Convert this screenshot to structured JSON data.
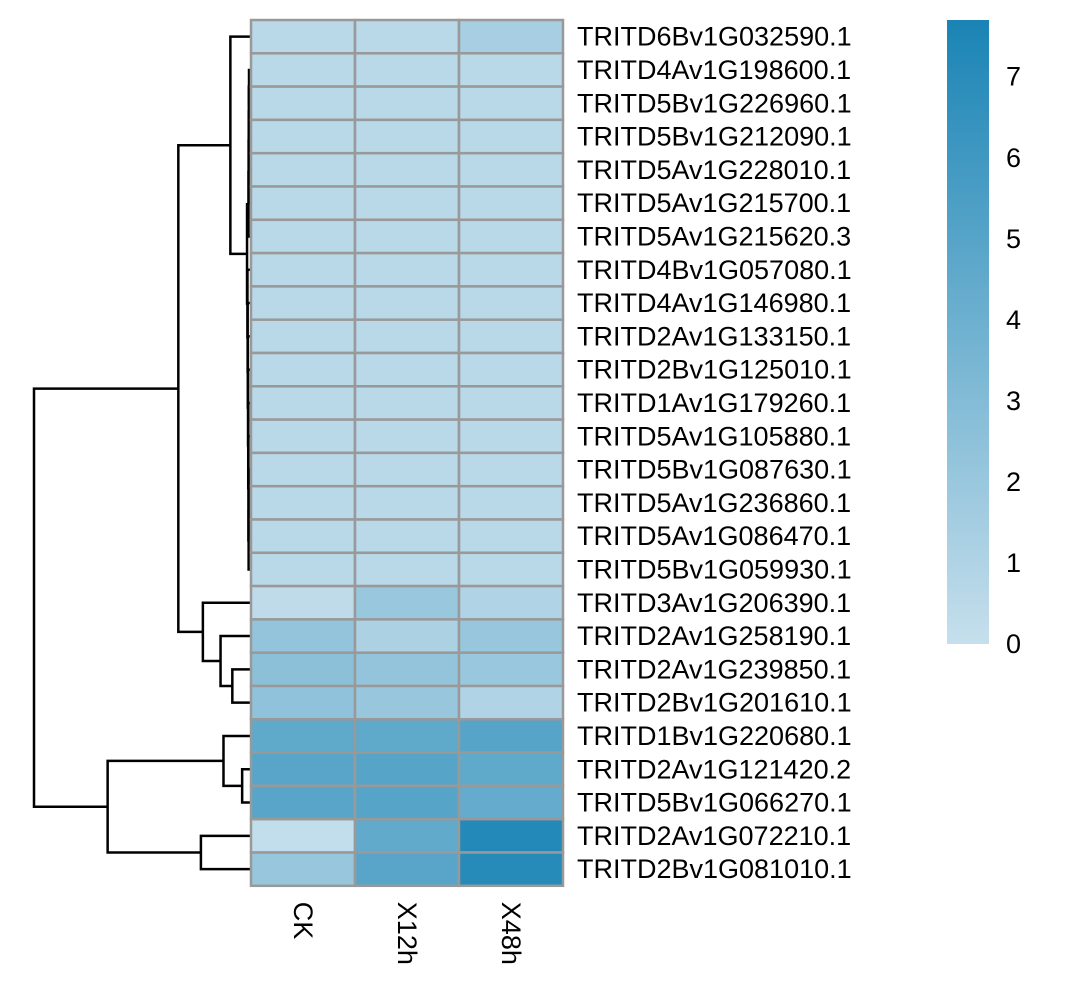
{
  "chart_data": {
    "type": "heatmap",
    "title": "",
    "columns": [
      "CK",
      "X12h",
      "X48h"
    ],
    "rows": [
      "TRITD6Bv1G032590.1",
      "TRITD4Av1G198600.1",
      "TRITD5Bv1G226960.1",
      "TRITD5Bv1G212090.1",
      "TRITD5Av1G228010.1",
      "TRITD5Av1G215700.1",
      "TRITD5Av1G215620.3",
      "TRITD4Bv1G057080.1",
      "TRITD4Av1G146980.1",
      "TRITD2Av1G133150.1",
      "TRITD2Bv1G125010.1",
      "TRITD1Av1G179260.1",
      "TRITD5Av1G105880.1",
      "TRITD5Bv1G087630.1",
      "TRITD5Av1G236860.1",
      "TRITD5Av1G086470.1",
      "TRITD5Bv1G059930.1",
      "TRITD3Av1G206390.1",
      "TRITD2Av1G258190.1",
      "TRITD2Av1G239850.1",
      "TRITD2Bv1G201610.1",
      "TRITD1Bv1G220680.1",
      "TRITD2Av1G121420.2",
      "TRITD5Bv1G066270.1",
      "TRITD2Av1G072210.1",
      "TRITD2Bv1G081010.1"
    ],
    "values": [
      [
        0.6,
        0.6,
        1.4
      ],
      [
        0.6,
        0.6,
        0.6
      ],
      [
        0.6,
        0.6,
        0.6
      ],
      [
        0.6,
        0.6,
        0.6
      ],
      [
        0.6,
        0.6,
        0.6
      ],
      [
        0.6,
        0.6,
        0.6
      ],
      [
        0.6,
        0.6,
        0.6
      ],
      [
        0.6,
        0.6,
        0.6
      ],
      [
        0.6,
        0.6,
        0.6
      ],
      [
        0.6,
        0.6,
        0.6
      ],
      [
        0.6,
        0.6,
        0.6
      ],
      [
        0.6,
        0.6,
        0.6
      ],
      [
        0.6,
        0.6,
        0.6
      ],
      [
        0.6,
        0.6,
        0.6
      ],
      [
        0.6,
        0.6,
        0.6
      ],
      [
        0.6,
        0.6,
        0.6
      ],
      [
        0.6,
        0.6,
        0.6
      ],
      [
        0.3,
        2.0,
        1.0
      ],
      [
        2.3,
        1.2,
        2.1
      ],
      [
        2.6,
        2.3,
        2.0
      ],
      [
        2.4,
        2.1,
        1.0
      ],
      [
        4.6,
        4.6,
        5.0
      ],
      [
        4.9,
        5.0,
        4.6
      ],
      [
        4.9,
        5.0,
        4.4
      ],
      [
        0.2,
        4.5,
        7.3
      ],
      [
        2.1,
        4.9,
        7.1
      ]
    ],
    "color_scale": {
      "min": 0,
      "max": 7.7,
      "low_color": "#c6dfec",
      "high_color": "#1a84b5",
      "ticks": [
        0,
        1,
        2,
        3,
        4,
        5,
        6,
        7
      ]
    },
    "cell_border_color": "#999999",
    "dendrogram": {
      "leaves": 26,
      "merges": [
        [
          -2,
          -3,
          0.01
        ],
        [
          1,
          -4,
          0.012
        ],
        [
          2,
          -5,
          0.013
        ],
        [
          3,
          -6,
          0.014
        ],
        [
          4,
          -7,
          0.015
        ],
        [
          -14,
          -15,
          0.01
        ],
        [
          6,
          -16,
          0.012
        ],
        [
          7,
          -17,
          0.014
        ],
        [
          -13,
          8,
          0.016
        ],
        [
          -12,
          9,
          0.018
        ],
        [
          -11,
          10,
          0.02
        ],
        [
          -10,
          11,
          0.022
        ],
        [
          -9,
          12,
          0.024
        ],
        [
          -8,
          13,
          0.026
        ],
        [
          5,
          14,
          0.03
        ],
        [
          -1,
          15,
          0.2
        ],
        [
          -20,
          -21,
          0.18
        ],
        [
          -19,
          17,
          0.3
        ],
        [
          -18,
          18,
          0.48
        ],
        [
          16,
          19,
          0.73
        ],
        [
          -23,
          -24,
          0.08
        ],
        [
          -22,
          21,
          0.27
        ],
        [
          -25,
          -26,
          0.5
        ],
        [
          22,
          23,
          1.45
        ],
        [
          20,
          24,
          2.2
        ]
      ]
    }
  }
}
